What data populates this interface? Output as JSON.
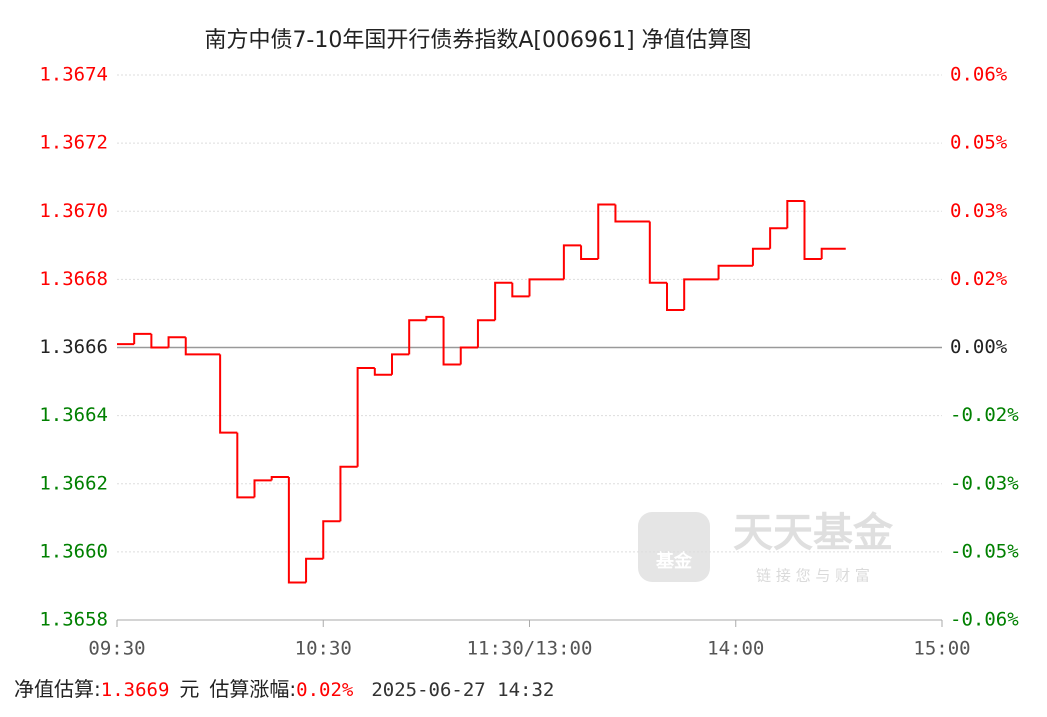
{
  "chart_data": {
    "type": "line",
    "title": "南方中债7-10年国开行债券指数A[006961] 净值估算图",
    "x": [
      0,
      5,
      10,
      15,
      20,
      30,
      35,
      40,
      45,
      50,
      55,
      60,
      65,
      70,
      75,
      80,
      85,
      90,
      95,
      100,
      105,
      110,
      115,
      120,
      130,
      135,
      140,
      145,
      155,
      160,
      165,
      175,
      185,
      190,
      195,
      200,
      205,
      212
    ],
    "series": [
      {
        "color": "#ff0000",
        "values": [
          1.36661,
          1.36664,
          1.3666,
          1.36663,
          1.36658,
          1.36635,
          1.36616,
          1.36621,
          1.36622,
          1.36591,
          1.36598,
          1.36609,
          1.36625,
          1.36654,
          1.36652,
          1.36658,
          1.36668,
          1.36669,
          1.36655,
          1.3666,
          1.36668,
          1.36679,
          1.36675,
          1.3668,
          1.3669,
          1.36686,
          1.36702,
          1.36697,
          1.36679,
          1.36671,
          1.3668,
          1.36684,
          1.36689,
          1.36695,
          1.36703,
          1.36686,
          1.36689,
          1.36689
        ]
      }
    ],
    "xlim": [
      0,
      240
    ],
    "xticks": [
      {
        "value": 0,
        "label": "09:30"
      },
      {
        "value": 60,
        "label": "10:30"
      },
      {
        "value": 120,
        "label": "11:30/13:00"
      },
      {
        "value": 180,
        "label": "14:00"
      },
      {
        "value": 240,
        "label": "15:00"
      }
    ],
    "ylim": [
      1.3658,
      1.3674
    ],
    "yticks": [
      1.3674,
      1.3672,
      {
        "value": 1.367,
        "label": "1.3670"
      },
      1.3668,
      1.3666,
      1.3664,
      1.3662,
      {
        "value": 1.366,
        "label": "1.3660"
      },
      1.3658
    ],
    "y2lim": [
      -0.0608,
      0.0608
    ],
    "y2ticks": [
      {
        "value": 0.0608,
        "label": "0.06%"
      },
      {
        "value": 0.0456,
        "label": "0.05%"
      },
      {
        "value": 0.0304,
        "label": "0.03%"
      },
      {
        "value": 0.0152,
        "label": "0.02%"
      },
      {
        "value": 0,
        "label": "0.00%"
      },
      {
        "value": -0.0152,
        "label": "-0.02%"
      },
      {
        "value": -0.0304,
        "label": "-0.03%"
      },
      {
        "value": -0.0456,
        "label": "-0.05%"
      },
      {
        "value": -0.0608,
        "label": "-0.06%"
      }
    ],
    "baseline": 1.3666,
    "grid": true,
    "up_color": "#ff0000",
    "down_color": "#008000",
    "flat_color": "#222222"
  },
  "footer": {
    "nav_label": "净值估算:",
    "nav": "1.3669",
    "unit": "元",
    "change_label": "估算涨幅:",
    "change": "0.02%",
    "time": "2025-06-27 14:32"
  },
  "watermark": {
    "brand": "天天基金",
    "slogan": "链 接 您 与 财 富",
    "logo_text": "基金"
  }
}
